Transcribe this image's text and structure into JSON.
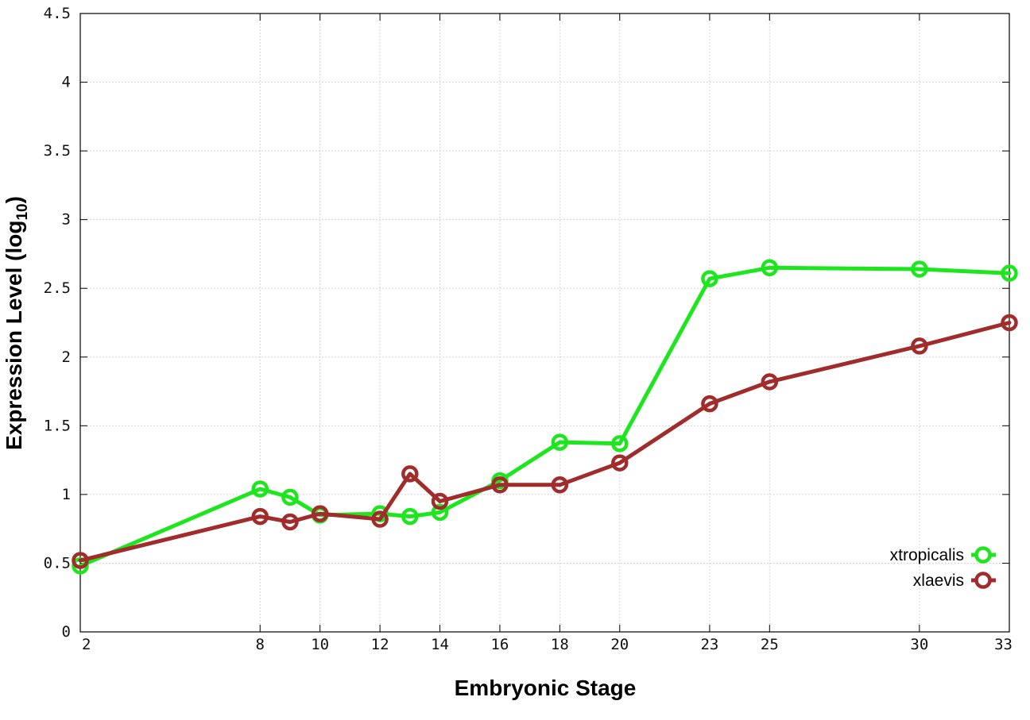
{
  "chart_data": {
    "type": "line",
    "xlabel": "Embryonic Stage",
    "ylabel_main": "Expression Level (log",
    "ylabel_sub": "10",
    "ylabel_close": ")",
    "xlim": [
      2,
      33
    ],
    "ylim": [
      0,
      4.5
    ],
    "x_ticks": [
      2,
      8,
      10,
      12,
      14,
      16,
      18,
      20,
      23,
      25,
      30,
      33
    ],
    "x_tick_labels": [
      "2",
      "8",
      "10",
      "12",
      "14",
      "16",
      "18",
      "20",
      "23",
      "25",
      "30",
      "33"
    ],
    "y_ticks": [
      0,
      0.5,
      1,
      1.5,
      2,
      2.5,
      3,
      3.5,
      4,
      4.5
    ],
    "y_tick_labels": [
      "0",
      "0.5",
      "1",
      "1.5",
      "2",
      "2.5",
      "3",
      "3.5",
      "4",
      "4.5"
    ],
    "grid": true,
    "legend_position": "bottom-right",
    "series": [
      {
        "name": "xtropicalis",
        "color": "#1ee61e",
        "x": [
          2,
          8,
          9,
          10,
          12,
          13,
          14,
          16,
          18,
          20,
          23,
          25,
          30,
          33
        ],
        "y": [
          0.48,
          1.04,
          0.98,
          0.85,
          0.86,
          0.84,
          0.87,
          1.1,
          1.38,
          1.37,
          2.57,
          2.65,
          2.64,
          2.61
        ]
      },
      {
        "name": "xlaevis",
        "color": "#a02c2c",
        "x": [
          2,
          8,
          9,
          10,
          12,
          13,
          14,
          16,
          18,
          20,
          23,
          25,
          30,
          33
        ],
        "y": [
          0.52,
          0.84,
          0.8,
          0.86,
          0.82,
          1.15,
          0.95,
          1.07,
          1.07,
          1.23,
          1.66,
          1.82,
          2.08,
          2.25
        ]
      }
    ]
  }
}
